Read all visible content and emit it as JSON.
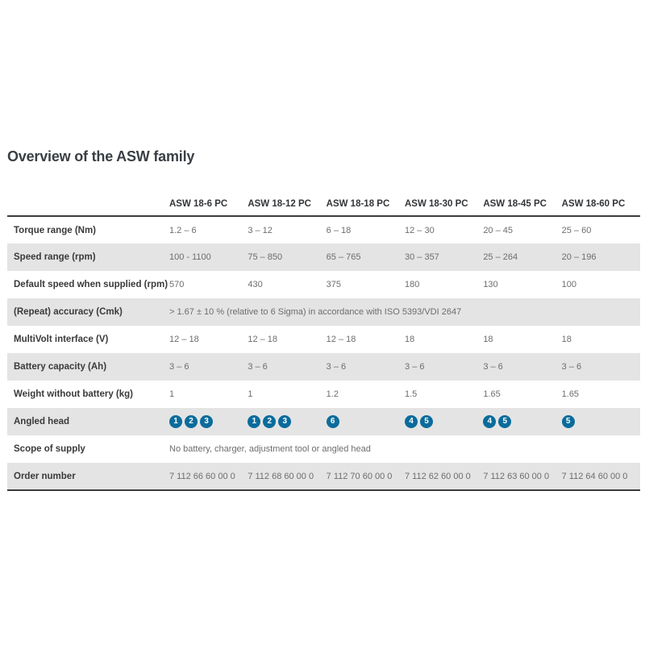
{
  "page": {
    "title": "Overview of the ASW family"
  },
  "colors": {
    "badge_blue": "#0a6c9c",
    "row_stripe": "#e4e4e4",
    "border_dark": "#3c3c3c"
  },
  "table": {
    "columns": [
      "ASW 18-6 PC",
      "ASW 18-12 PC",
      "ASW 18-18 PC",
      "ASW 18-30 PC",
      "ASW 18-45 PC",
      "ASW 18-60 PC"
    ],
    "rows": [
      {
        "label": "Torque range (Nm)",
        "type": "values",
        "values": [
          "1.2 – 6",
          "3 – 12",
          "6 – 18",
          "12 – 30",
          "20 – 45",
          "25 – 60"
        ]
      },
      {
        "label": "Speed range (rpm)",
        "type": "values",
        "values": [
          "100 - 1100",
          "75 – 850",
          "65 – 765",
          "30 – 357",
          "25 – 264",
          "20 – 196"
        ]
      },
      {
        "label": "Default speed when supplied (rpm)",
        "type": "values",
        "values": [
          "570",
          "430",
          "375",
          "180",
          "130",
          "100"
        ]
      },
      {
        "label": "(Repeat) accuracy (Cmk)",
        "type": "span",
        "text": "> 1.67 ± 10 % (relative to 6 Sigma) in accordance with ISO 5393/VDI 2647"
      },
      {
        "label": "MultiVolt interface (V)",
        "type": "values",
        "values": [
          "12 – 18",
          "12 – 18",
          "12 – 18",
          "18",
          "18",
          "18"
        ]
      },
      {
        "label": "Battery capacity (Ah)",
        "type": "values",
        "values": [
          "3 – 6",
          "3 – 6",
          "3 – 6",
          "3 – 6",
          "3 – 6",
          "3 – 6"
        ]
      },
      {
        "label": "Weight without battery (kg)",
        "type": "values",
        "values": [
          "1",
          "1",
          "1.2",
          "1.5",
          "1.65",
          "1.65"
        ]
      },
      {
        "label": "Angled head",
        "type": "badges",
        "badges": [
          [
            "1",
            "2",
            "3"
          ],
          [
            "1",
            "2",
            "3"
          ],
          [
            "6"
          ],
          [
            "4",
            "5"
          ],
          [
            "4",
            "5"
          ],
          [
            "5"
          ]
        ]
      },
      {
        "label": "Scope of supply",
        "type": "span",
        "text": "No battery, charger, adjustment tool or angled head"
      },
      {
        "label": "Order number",
        "type": "values",
        "values": [
          "7 112 66 60 00 0",
          "7 112 68 60 00 0",
          "7 112 70 60 00 0",
          "7 112 62 60 00 0",
          "7 112 63 60 00 0",
          "7 112 64 60 00 0"
        ]
      }
    ]
  }
}
